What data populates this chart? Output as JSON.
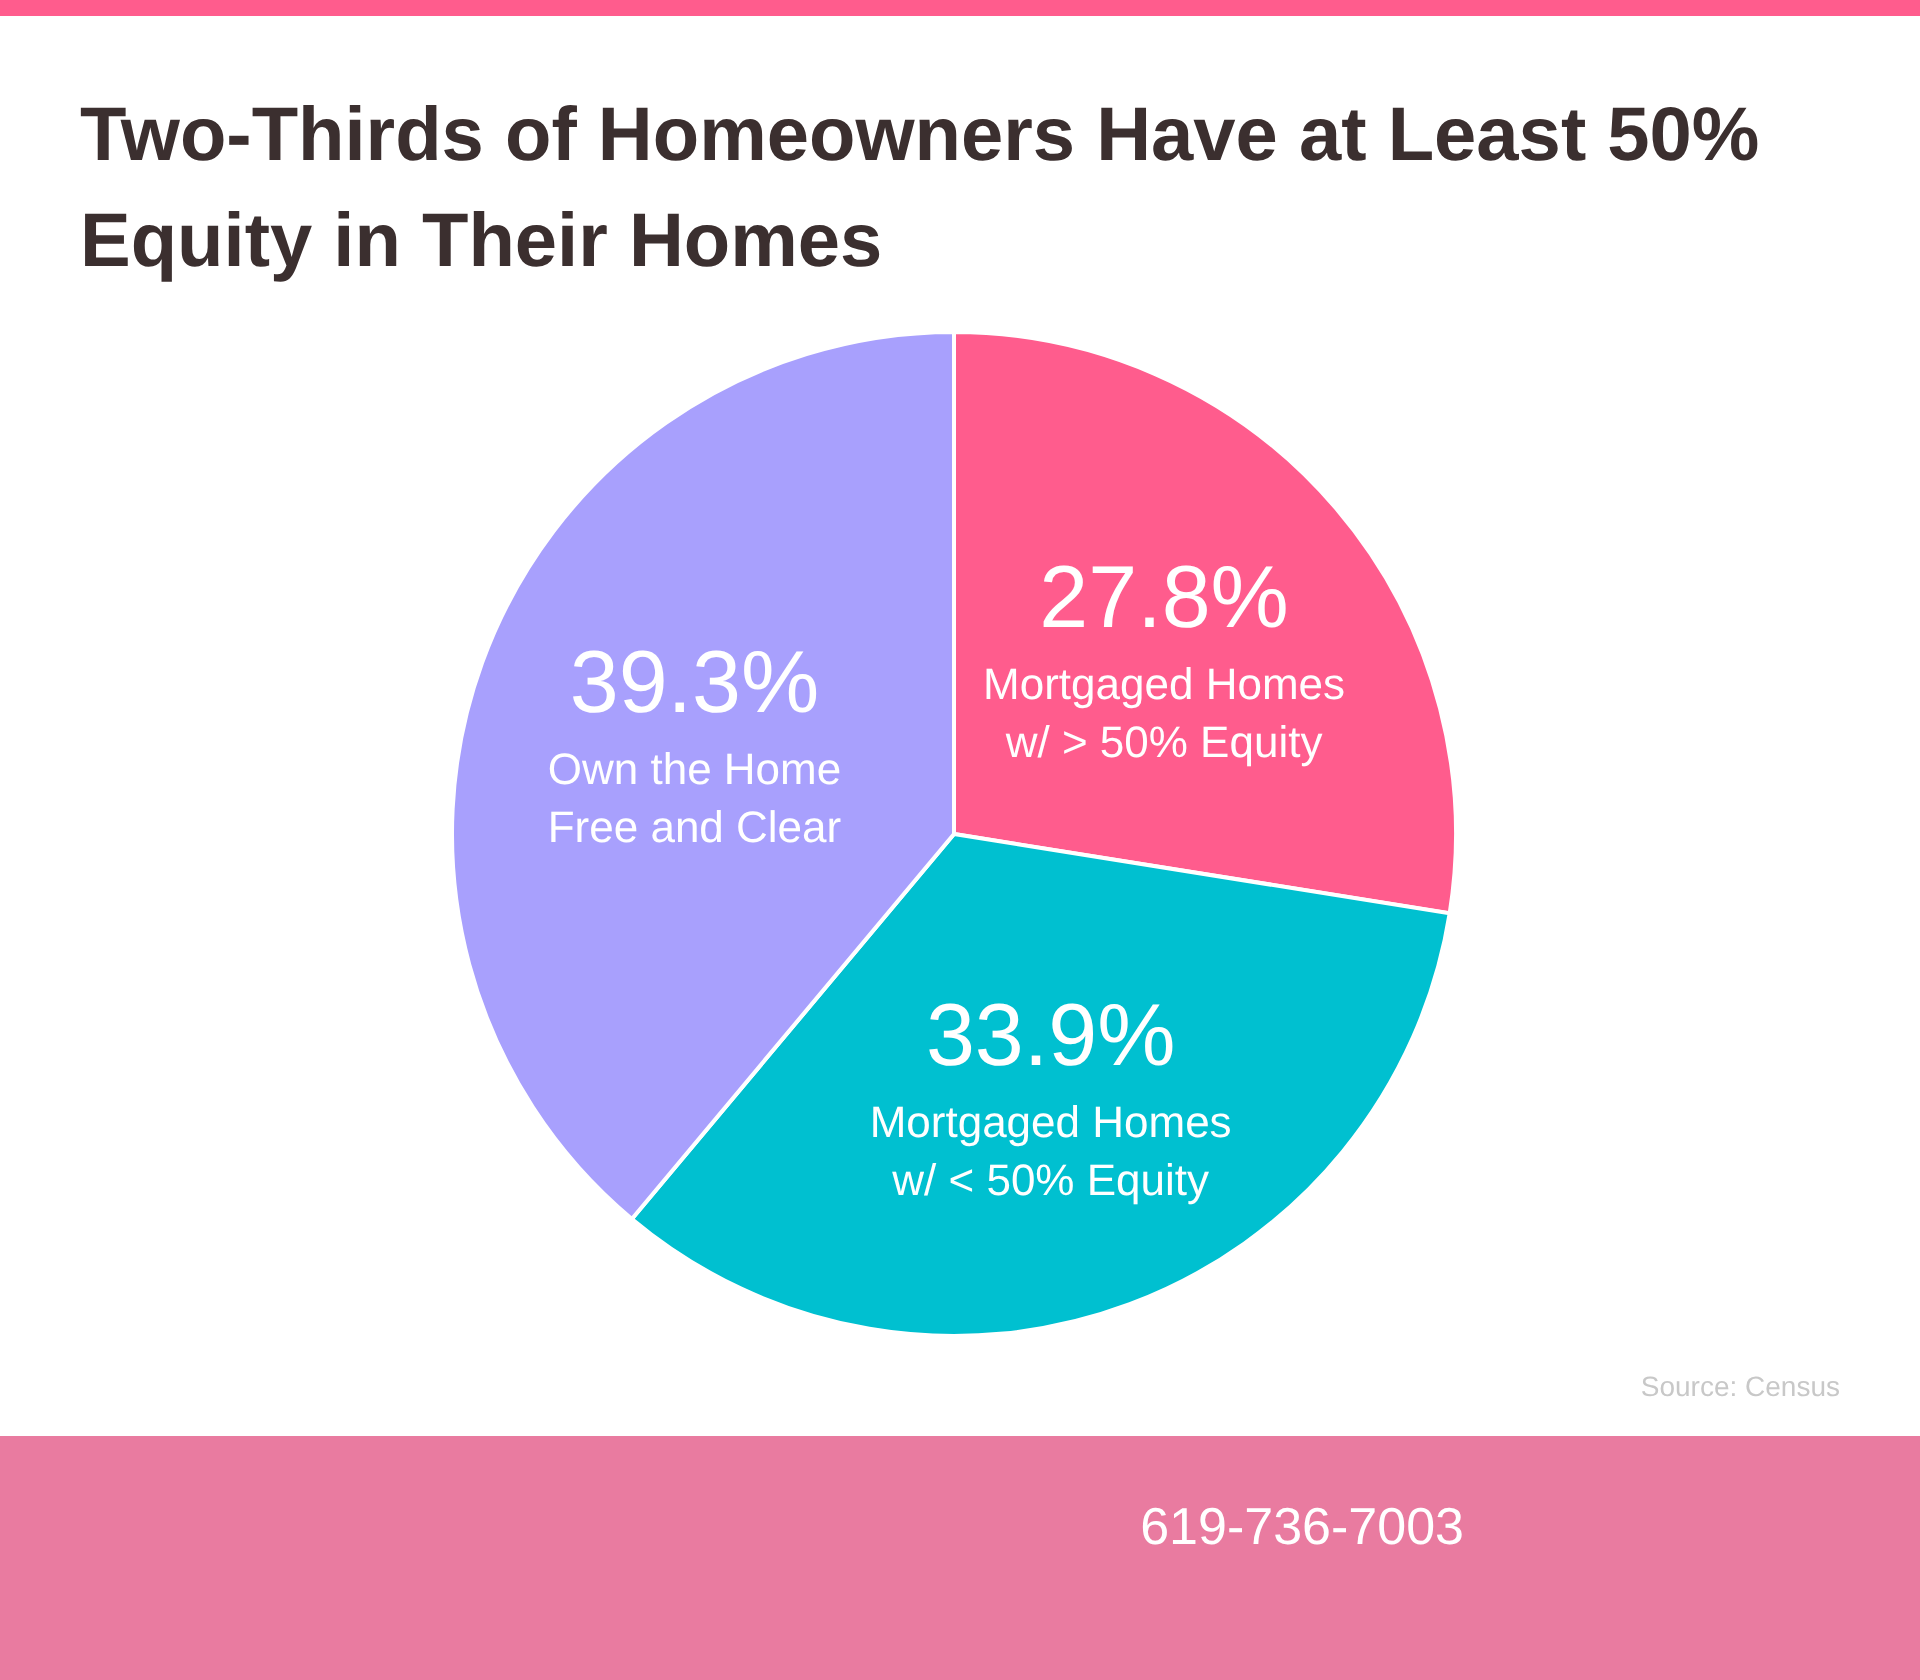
{
  "chart_data": {
    "type": "pie",
    "title": "Two-Thirds of Homeowners Have at Least 50% Equity in Their Homes",
    "categories": [
      "Mortgaged Homes\nw/ > 50% Equity",
      "Mortgaged Homes\nw/ < 50% Equity",
      "Own the Home\nFree and Clear"
    ],
    "values": [
      27.8,
      33.9,
      39.3
    ],
    "colors": [
      "#ff5c8d",
      "#00c0d0",
      "#a8a0fd"
    ],
    "value_labels": [
      "27.8%",
      "33.9%",
      "39.3%"
    ],
    "annotations": [
      "Source: Census",
      "619-736-7003"
    ]
  }
}
